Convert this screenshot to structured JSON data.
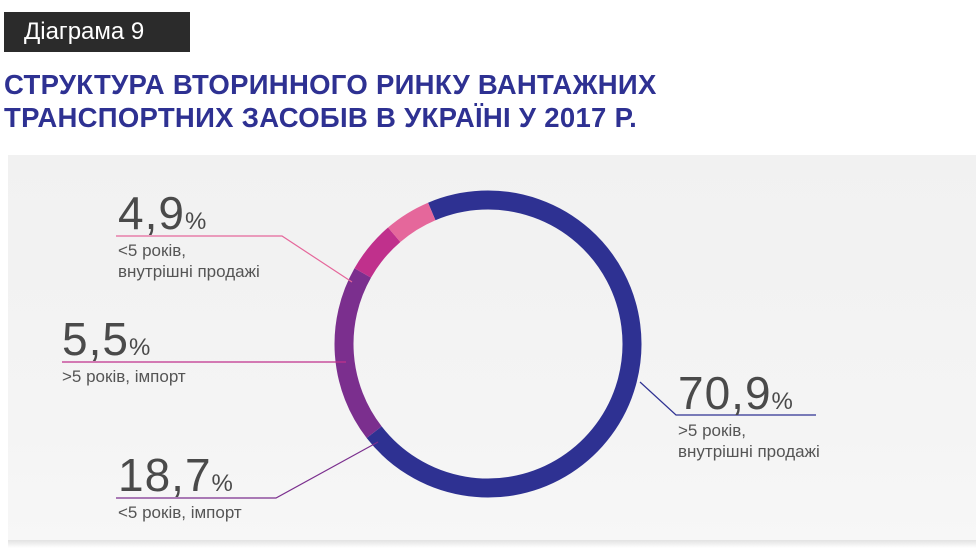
{
  "header": {
    "badge": "Діаграма 9",
    "title_line1": "СТРУКТУРА ВТОРИННОГО РИНКУ ВАНТАЖНИХ",
    "title_line2": "ТРАНСПОРТНИХ ЗАСОБІВ В УКРАЇНІ У 2017 Р."
  },
  "chart_data": {
    "type": "pie",
    "title": "СТРУКТУРА ВТОРИННОГО РИНКУ ВАНТАЖНИХ ТРАНСПОРТНИХ ЗАСОБІВ В УКРАЇНІ У 2017 Р.",
    "unit": "%",
    "slices": [
      {
        "value": 70.9,
        "value_label": "70,9",
        "line1": ">5 років,",
        "line2": "внутрішні продажі",
        "color": "#2e3192"
      },
      {
        "value": 18.7,
        "value_label": "18,7",
        "line1": "<5 років, імпорт",
        "line2": "",
        "color": "#7b2f8e"
      },
      {
        "value": 5.5,
        "value_label": "5,5",
        "line1": ">5 років, імпорт",
        "line2": "",
        "color": "#c0308c"
      },
      {
        "value": 4.9,
        "value_label": "4,9",
        "line1": "<5 років,",
        "line2": "внутрішні продажі",
        "color": "#e5679b"
      }
    ]
  }
}
